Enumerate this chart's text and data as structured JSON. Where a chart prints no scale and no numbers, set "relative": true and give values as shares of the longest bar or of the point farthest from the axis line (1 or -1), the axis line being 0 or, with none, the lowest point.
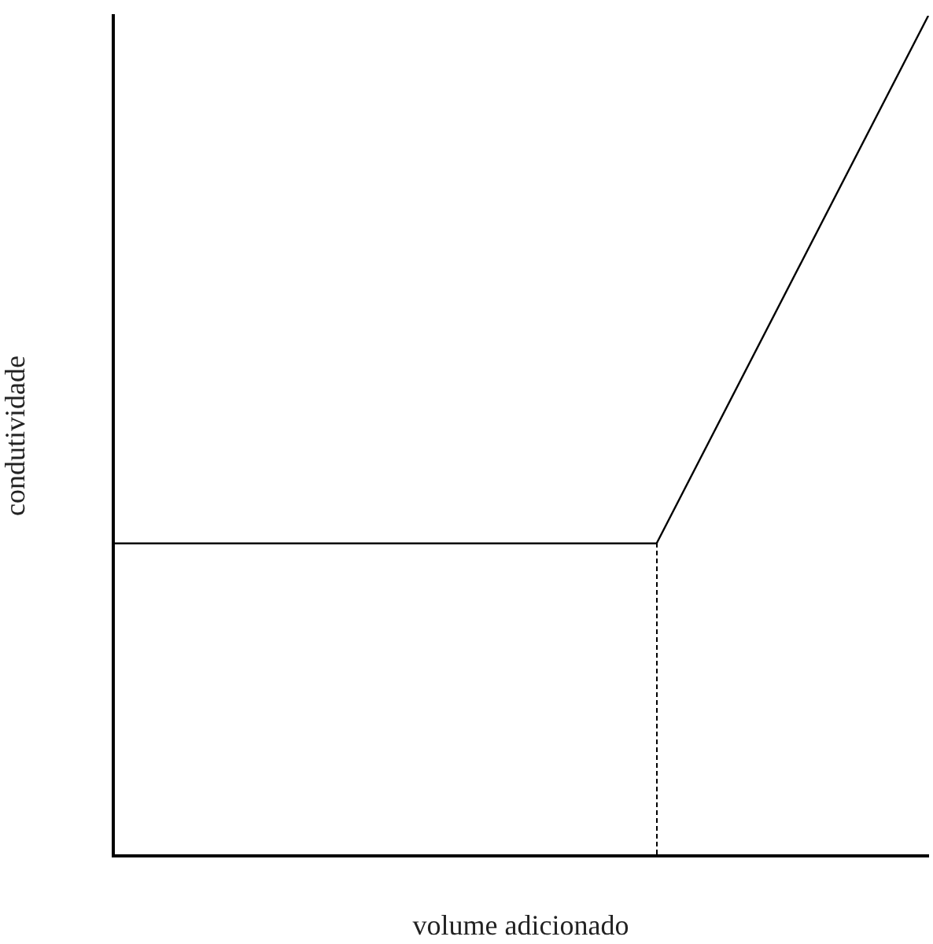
{
  "chart_data": {
    "type": "line",
    "relative": true,
    "xlabel": "volume adicionado",
    "ylabel": "condutividade",
    "grid": false,
    "legend": false,
    "marker": "none",
    "categories": [
      null,
      null,
      null,
      null
    ],
    "series": [
      {
        "color": "#000000",
        "values": [
          0.372,
          0.372,
          0.372,
          1
        ],
        "line_style": "solid"
      }
    ]
  }
}
